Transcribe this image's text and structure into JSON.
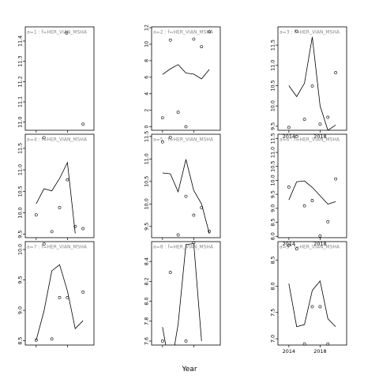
{
  "chart_data": {
    "type": "line",
    "xlabel": "Year",
    "x_ticks": [
      2014,
      2018
    ],
    "panels": [
      {
        "label": "a=1 : f=HER_VIAN_MSHA",
        "xlim": [
          2012.6,
          2021.4
        ],
        "ylim": [
          10.96,
          11.47
        ],
        "yticks": [
          {
            "v": 11.0,
            "t": "11.0"
          },
          {
            "v": 11.1,
            "t": "11.1"
          },
          {
            "v": 11.2,
            "t": "11.2"
          },
          {
            "v": 11.3,
            "t": "11.3"
          },
          {
            "v": 11.4,
            "t": "11.4"
          }
        ],
        "line": [],
        "points": [
          [
            2017.9,
            11.44
          ],
          [
            2020,
            10.99
          ]
        ],
        "show_x_labels": false
      },
      {
        "label": "a=4 : f=HER_VIAN_MSHA",
        "xlim": [
          2012.6,
          2021.4
        ],
        "ylim": [
          9.42,
          11.83
        ],
        "yticks": [
          {
            "v": 9.5,
            "t": "9.5"
          },
          {
            "v": 10.0,
            "t": "10.0"
          },
          {
            "v": 10.5,
            "t": "10.5"
          },
          {
            "v": 11.0,
            "t": "11.0"
          },
          {
            "v": 11.5,
            "t": "11.5"
          }
        ],
        "line": [
          [
            2014,
            10.21
          ],
          [
            2015,
            10.56
          ],
          [
            2016,
            10.51
          ],
          [
            2017,
            10.8
          ],
          [
            2018,
            11.17
          ],
          [
            2019,
            9.52
          ]
        ],
        "points": [
          [
            2014,
            9.95
          ],
          [
            2015,
            11.75
          ],
          [
            2016,
            9.56
          ],
          [
            2017,
            10.12
          ],
          [
            2018,
            10.77
          ],
          [
            2019,
            9.68
          ],
          [
            2020,
            9.63
          ]
        ],
        "show_x_labels": false
      },
      {
        "label": "a=7 : f=HER_VIAN_MSHA",
        "xlim": [
          2012.6,
          2021.4
        ],
        "ylim": [
          8.43,
          10.13
        ],
        "yticks": [
          {
            "v": 8.5,
            "t": "8.5"
          },
          {
            "v": 9.0,
            "t": "9.0"
          },
          {
            "v": 9.5,
            "t": "9.5"
          },
          {
            "v": 10.0,
            "t": "10.0"
          }
        ],
        "line": [
          [
            2014,
            8.51
          ],
          [
            2015,
            8.99
          ],
          [
            2016,
            9.65
          ],
          [
            2017,
            9.75
          ],
          [
            2018,
            9.32
          ],
          [
            2019,
            8.7
          ],
          [
            2020,
            8.83
          ]
        ],
        "points": [
          [
            2014,
            8.51
          ],
          [
            2015,
            10.09
          ],
          [
            2016,
            8.53
          ],
          [
            2017,
            9.21
          ],
          [
            2018,
            9.21
          ],
          [
            2020,
            9.3
          ]
        ],
        "show_x_labels": false
      },
      {
        "label": "a=2 : f=HER_VIAN_MSHA",
        "xlim": [
          2012.6,
          2021.4
        ],
        "ylim": [
          -0.42,
          12.1
        ],
        "yticks": [
          {
            "v": 0,
            "t": "0"
          },
          {
            "v": 2,
            "t": "2"
          },
          {
            "v": 4,
            "t": "4"
          },
          {
            "v": 6,
            "t": "6"
          },
          {
            "v": 8,
            "t": "8"
          },
          {
            "v": 10,
            "t": "10"
          },
          {
            "v": 12,
            "t": "12"
          }
        ],
        "line": [
          [
            2014,
            6.34
          ],
          [
            2015,
            7.01
          ],
          [
            2016,
            7.53
          ],
          [
            2017,
            6.51
          ],
          [
            2018,
            6.38
          ],
          [
            2019,
            5.8
          ],
          [
            2020,
            6.95
          ]
        ],
        "points": [
          [
            2014,
            1.1
          ],
          [
            2015,
            10.5
          ],
          [
            2016,
            1.76
          ],
          [
            2017,
            0.01
          ],
          [
            2018,
            10.62
          ],
          [
            2019,
            9.7
          ],
          [
            2020,
            11.5
          ]
        ],
        "show_x_labels": false
      },
      {
        "label": "a=5 : f=HER_VIAN_MSHA",
        "xlim": [
          2012.6,
          2021.4
        ],
        "ylim": [
          9.25,
          11.55
        ],
        "yticks": [
          {
            "v": 9.5,
            "t": "9.5"
          },
          {
            "v": 10.0,
            "t": "10.0"
          },
          {
            "v": 10.5,
            "t": "10.5"
          },
          {
            "v": 11.0,
            "t": "11.0"
          },
          {
            "v": 11.5,
            "t": "11.5"
          }
        ],
        "line": [
          [
            2014,
            10.69
          ],
          [
            2015,
            10.67
          ],
          [
            2016,
            10.27
          ],
          [
            2017,
            10.99
          ],
          [
            2018,
            10.3
          ],
          [
            2019,
            10.0
          ],
          [
            2020,
            9.34
          ]
        ],
        "points": [
          [
            2014,
            11.38
          ],
          [
            2015,
            11.48
          ],
          [
            2016,
            9.31
          ],
          [
            2017,
            10.17
          ],
          [
            2018,
            9.75
          ],
          [
            2019,
            9.92
          ],
          [
            2020,
            9.39
          ]
        ],
        "show_x_labels": false
      },
      {
        "label": "a=8 : f=HER_VIAN_MSHA",
        "xlim": [
          2012.6,
          2021.4
        ],
        "ylim": [
          7.56,
          8.6
        ],
        "yticks": [
          {
            "v": 7.6,
            "t": "7.6"
          },
          {
            "v": 7.8,
            "t": "7.8"
          },
          {
            "v": 8.0,
            "t": "8.0"
          },
          {
            "v": 8.2,
            "t": "8.2"
          },
          {
            "v": 8.4,
            "t": "8.4"
          }
        ],
        "line": [
          [
            2014,
            7.74
          ],
          [
            2015,
            7.3
          ],
          [
            2016,
            7.77
          ],
          [
            2017,
            8.57
          ],
          [
            2018,
            8.58
          ],
          [
            2019,
            7.6
          ]
        ],
        "points": [
          [
            2014,
            7.6
          ],
          [
            2015,
            8.29
          ],
          [
            2017,
            7.6
          ],
          [
            2018,
            8.59
          ]
        ],
        "show_x_labels": false
      },
      {
        "label": "a=3 : f=HER_VIAN_MSHA",
        "xlim": [
          2012.6,
          2021.4
        ],
        "ylim": [
          9.4,
          11.95
        ],
        "yticks": [
          {
            "v": 9.5,
            "t": "9.5"
          },
          {
            "v": 10.0,
            "t": "10.0"
          },
          {
            "v": 10.5,
            "t": "10.5"
          },
          {
            "v": 11.0,
            "t": "11.0"
          },
          {
            "v": 11.5,
            "t": "11.5"
          }
        ],
        "line": [
          [
            2014,
            10.5
          ],
          [
            2015,
            10.23
          ],
          [
            2016,
            10.56
          ],
          [
            2017,
            11.7
          ],
          [
            2018,
            10.0
          ],
          [
            2019,
            9.4
          ],
          [
            2020,
            9.53
          ]
        ],
        "points": [
          [
            2014,
            9.47
          ],
          [
            2015,
            11.84
          ],
          [
            2016,
            9.67
          ],
          [
            2017,
            10.49
          ],
          [
            2018,
            9.55
          ],
          [
            2019,
            9.72
          ],
          [
            2020,
            10.82
          ]
        ],
        "show_x_labels": true
      },
      {
        "label": "a=6 : f=HER_VIAN_MSHA",
        "xlim": [
          2012.6,
          2021.4
        ],
        "ylim": [
          7.95,
          11.65
        ],
        "yticks": [
          {
            "v": 8.0,
            "t": "8.0"
          },
          {
            "v": 8.5,
            "t": "8.5"
          },
          {
            "v": 9.0,
            "t": "9.0"
          },
          {
            "v": 9.5,
            "t": "9.5"
          },
          {
            "v": 10.0,
            "t": "10.0"
          },
          {
            "v": 10.5,
            "t": "10.5"
          },
          {
            "v": 11.0,
            "t": "11.0"
          },
          {
            "v": 11.5,
            "t": "11.5"
          }
        ],
        "line": [
          [
            2014,
            9.3
          ],
          [
            2015,
            9.95
          ],
          [
            2016,
            9.98
          ],
          [
            2017,
            9.75
          ],
          [
            2018,
            9.45
          ],
          [
            2019,
            9.15
          ],
          [
            2020,
            9.24
          ]
        ],
        "points": [
          [
            2014,
            9.76
          ],
          [
            2015,
            11.57
          ],
          [
            2016,
            9.09
          ],
          [
            2017,
            9.28
          ],
          [
            2018,
            8.01
          ],
          [
            2019,
            8.52
          ],
          [
            2020,
            10.05
          ]
        ],
        "show_x_labels": true
      },
      {
        "label": "a=9 : f=HER_VIAN_MSHA",
        "xlim": [
          2012.6,
          2021.4
        ],
        "ylim": [
          6.88,
          8.85
        ],
        "yticks": [
          {
            "v": 7.0,
            "t": "7.0"
          },
          {
            "v": 7.5,
            "t": "7.5"
          },
          {
            "v": 8.0,
            "t": "8.0"
          },
          {
            "v": 8.5,
            "t": "8.5"
          }
        ],
        "line": [
          [
            2014,
            8.05
          ],
          [
            2015,
            7.23
          ],
          [
            2016,
            7.27
          ],
          [
            2017,
            7.92
          ],
          [
            2018,
            8.1
          ],
          [
            2019,
            7.38
          ],
          [
            2020,
            7.23
          ]
        ],
        "points": [
          [
            2014,
            8.78
          ],
          [
            2015,
            8.71
          ],
          [
            2016,
            6.9
          ],
          [
            2017,
            7.61
          ],
          [
            2018,
            7.61
          ],
          [
            2019,
            6.9
          ]
        ],
        "show_x_labels": true
      }
    ]
  }
}
